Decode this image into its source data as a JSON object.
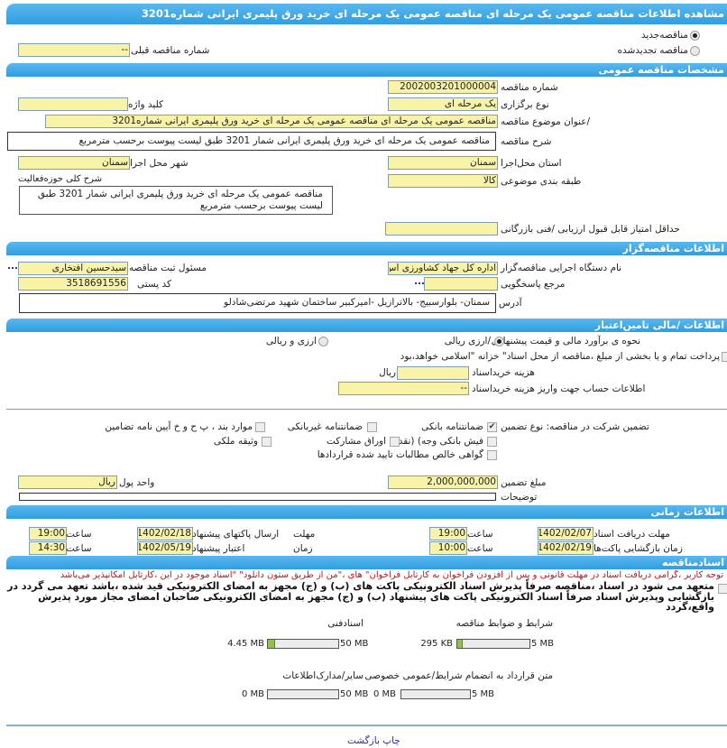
{
  "page_title": "مشاهده اطلاعات مناقصه  عمومی یک  مرحله ای  مناقصه  عمومی  یک  مرحله ای  خرید  ورق  پلیمری ایرانی  شماره3201",
  "tender_status": {
    "new_label": "مناقصه‌جدید",
    "renewed_label": "مناقصه تجدیدشده",
    "selected": "new"
  },
  "previous_tender": {
    "label": "شماره  مناقصه قبلی",
    "value": "--"
  },
  "general": {
    "section_title": "مشخصات مناقصه عمومی",
    "tender_number": {
      "label": "شماره مناقصه",
      "value": "2002003201000004"
    },
    "holding_type": {
      "label": "نوع برگزاری",
      "value": "یک مرحله ای"
    },
    "keyword": {
      "label": "کلید واژه",
      "value": ""
    },
    "subject": {
      "label": "/عنوان  موضوع مناقصه",
      "value": "مناقصه عمومی یک مرحله ای مناقصه عمومی یک مرحله ای خرید ورق پلیمری ایرانی شماره3201"
    },
    "description": {
      "label": "شرح مناقصه",
      "value": "مناقصه عمومی یک مرحله ای خرید ورق  پلیمری ایرانی شمار 3201 طبق لیست پیوست برحسب مترمربع"
    },
    "province": {
      "label": "استان محل‌اجرا",
      "value": "سمنان"
    },
    "city": {
      "label": "شهر محل اجرا",
      "value": "سمنان"
    },
    "category": {
      "label": "طبقه بندی موضوعی",
      "value": "کالا"
    },
    "activity": {
      "label": "شرح کلی حوزه‌فعالیت",
      "value": "مناقصه عمومی یک مرحله ای خرید ورق  پلیمری ایرانی شمار 3201 طبق لیست پیوست برحسب مترمربع"
    },
    "min_score": {
      "label": "حداقل  امتیاز قابل قبول  ارزیابی /فنی بازرگانی",
      "value": ""
    }
  },
  "organizer": {
    "section_title": "اطلاعات مناقصه‌گزار",
    "org_name": {
      "label": "نام دستگاه اجرایی  مناقصه‌گزار",
      "value": "اداره کل جهاد کشاورزی اس"
    },
    "responsible": {
      "label": "مسئول ثبت مناقصه",
      "value": "سیدحسین افتخاری",
      "more": "..."
    },
    "reference": {
      "label": "مرجع پاسخگویی",
      "value": "",
      "more": "..."
    },
    "postal_code": {
      "label": "کد  پستی",
      "value": "3518691556"
    },
    "address": {
      "label": "آدرس",
      "value": "سمنان-  بلوارسبیج-  بالاترازیل  -امیرکبیر  ساختمان  شهید  مرتضی‌شادلو"
    }
  },
  "finance": {
    "section_title": "اطلاعات /مالی تامین‌اعتبار",
    "estimate_label": "نحوه ی برآورد مالی و قیمت پیشنهادی",
    "option_rial": "/ارزی ریالی",
    "option_fx_rial": "ارزی و ریالی",
    "selected": "rial",
    "payment_note": "پرداخت تمام و یا بخشی از مبلغ  ،مناقصه از محل اسناد\" خزانه \"اسلامی خواهد،بود",
    "doc_cost": {
      "label": "هزینه خریداسناد",
      "value": "",
      "unit": "ریال"
    },
    "account_info": {
      "label": "اطلاعات حساب جهت واریز هزینه خریداسناد",
      "value": "--"
    }
  },
  "guarantee": {
    "type_label": "تضمین شرکت در  مناقصه:   نوع    تضمین",
    "options": [
      {
        "label": "ضمانتنامه  بانکی",
        "checked": true
      },
      {
        "label": "ضمانتنامه  غیربانکی",
        "checked": false
      },
      {
        "label": "موارد  بند ، پ ح و خ آیین نامه تضامین",
        "checked": false
      },
      {
        "label": "فیش  بانکی وجه) (نقد",
        "checked": false
      },
      {
        "label": "اوراق  مشارکت",
        "checked": false
      },
      {
        "label": "وثیقه  ملکی",
        "checked": false
      },
      {
        "label": "گواهی  خالص مطالبات تایید شده قراردادها",
        "checked": false
      }
    ],
    "amount": {
      "label": "مبلغ تضمین",
      "value": "2,000,000,000"
    },
    "currency": {
      "label": "واحد پول",
      "value": "ریال"
    },
    "notes": {
      "label": "توضیحات",
      "value": ""
    }
  },
  "timing": {
    "section_title": "اطلاعات زمانی",
    "time_label": "ساعت",
    "doc_receipt": {
      "label": "مهلت  دریافت اسناد",
      "date": "1402/02/07",
      "time": "19:00"
    },
    "opening": {
      "label": "زمان  بازگشایی پاکت‌ها",
      "date": "1402/02/19",
      "time": "10:00"
    },
    "submission": {
      "prefix": "مهلت",
      "label": "ارسال  پاکتهای پیشنهاد",
      "date": "1402/02/18",
      "time": "19:00"
    },
    "validity": {
      "prefix": "زمان",
      "label": "اعتبار پیشنهاد",
      "date": "1402/05/19",
      "time": "14:30"
    }
  },
  "documents": {
    "section_title": "اسنادمناقصه",
    "notice": "توجه کاربر ،گرامی دریافت اسناد در مهلت قانونی و پس از افزودن فراخوان به کارتابل فراخوان\" های ،\"من از طریق ستون دانلود\" \"اسناد موجود در این ،کارتابل امکانپذیر می‌باشد",
    "commitment": "متعهد می شود در اسناد ،مناقصه صرفاً پذیرش اسناد الکترونیکی پاکت های (ب) و (ج) مجهز به امضای الکترونیکی قید شده ،باشد تعهد می گردد در بازگشایی وپذیرش اسناد صرفاً اسناد الکترونیکی پاکت های پیشنهاد (ب) و (ج) مجهز به امضای الکترونیکی صاحبان امضای مجاز مورد پذیرش واقع،گردد",
    "files": [
      {
        "label": "شرایط و  ضوابط مناقصه",
        "used": "295 KB",
        "max": "5 MB",
        "fraction": 0.058
      },
      {
        "label": "اسنادفنی",
        "used": "4.45 MB",
        "max": "50 MB",
        "fraction": 0.089
      },
      {
        "label": "متن قرارداد به  انضمام شرایط/عمومی  خصوصی",
        "used": "0 MB",
        "max": "5 MB",
        "fraction": 0
      },
      {
        "label": "سایر/مدارک‌اطلاعات",
        "used": "0 MB",
        "max": "50 MB",
        "fraction": 0
      }
    ]
  },
  "footer": {
    "print_label": "چاپ",
    "back_label": "بازگشت"
  },
  "colors": {
    "section_bar": "#2f9ee0",
    "input_bg": "#f8f3a6",
    "notice_text": "#d01010",
    "link": "#2a2ab8",
    "progress_fill": "#8dc63f"
  }
}
